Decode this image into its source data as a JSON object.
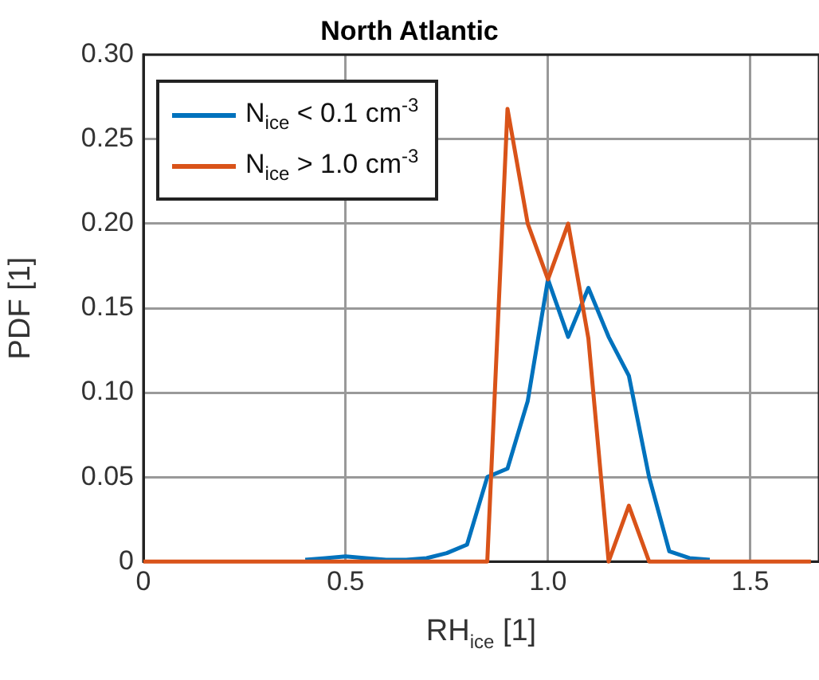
{
  "chart_data": {
    "type": "line",
    "title": "North Atlantic",
    "xlabel": "RH$_{ice}$ [1]",
    "ylabel": "PDF [1]",
    "x": [
      0,
      0.05,
      0.1,
      0.15,
      0.2,
      0.25,
      0.3,
      0.35,
      0.4,
      0.45,
      0.5,
      0.55,
      0.6,
      0.65,
      0.7,
      0.75,
      0.8,
      0.85,
      0.9,
      0.95,
      1.0,
      1.05,
      1.1,
      1.15,
      1.2,
      1.25,
      1.3,
      1.35,
      1.4,
      1.45,
      1.5,
      1.55,
      1.6,
      1.65
    ],
    "series": [
      {
        "name": "N$_{ice}$ < 0.1 cm$^{-3}$",
        "color": "#0072bd",
        "values": [
          null,
          null,
          null,
          null,
          null,
          null,
          null,
          null,
          0.001,
          0.002,
          0.003,
          0.002,
          0.001,
          0.001,
          0.002,
          0.005,
          0.01,
          0.05,
          0.055,
          0.095,
          0.167,
          0.133,
          0.162,
          0.133,
          0.11,
          0.05,
          0.006,
          0.002,
          0.001,
          null,
          null,
          null,
          null,
          null
        ]
      },
      {
        "name": "N$_{ice}$ > 1.0 cm$^{-3}$",
        "color": "#d95319",
        "values": [
          0,
          0,
          0,
          0,
          0,
          0,
          0,
          0,
          0,
          0,
          0,
          0,
          0,
          0,
          0,
          0,
          0,
          0,
          0.268,
          0.2,
          0.167,
          0.2,
          0.132,
          0,
          0.033,
          0,
          0,
          0,
          0,
          0,
          0,
          0,
          0,
          0
        ]
      }
    ],
    "xlim": [
      0,
      1.67
    ],
    "xticks": [
      0,
      0.5,
      {
        "value": 1,
        "label": "1.0"
      },
      1.5
    ],
    "ylim": [
      0,
      0.3
    ],
    "yticks": [
      {
        "value": 0,
        "label": "0"
      },
      0.05,
      {
        "value": 0.1,
        "label": "0.10"
      },
      0.15,
      {
        "value": 0.2,
        "label": "0.20"
      },
      0.25,
      {
        "value": 0.3,
        "label": "0.30"
      }
    ],
    "grid": true,
    "legend": "top left",
    "marker": "none",
    "line_style": "solid"
  }
}
